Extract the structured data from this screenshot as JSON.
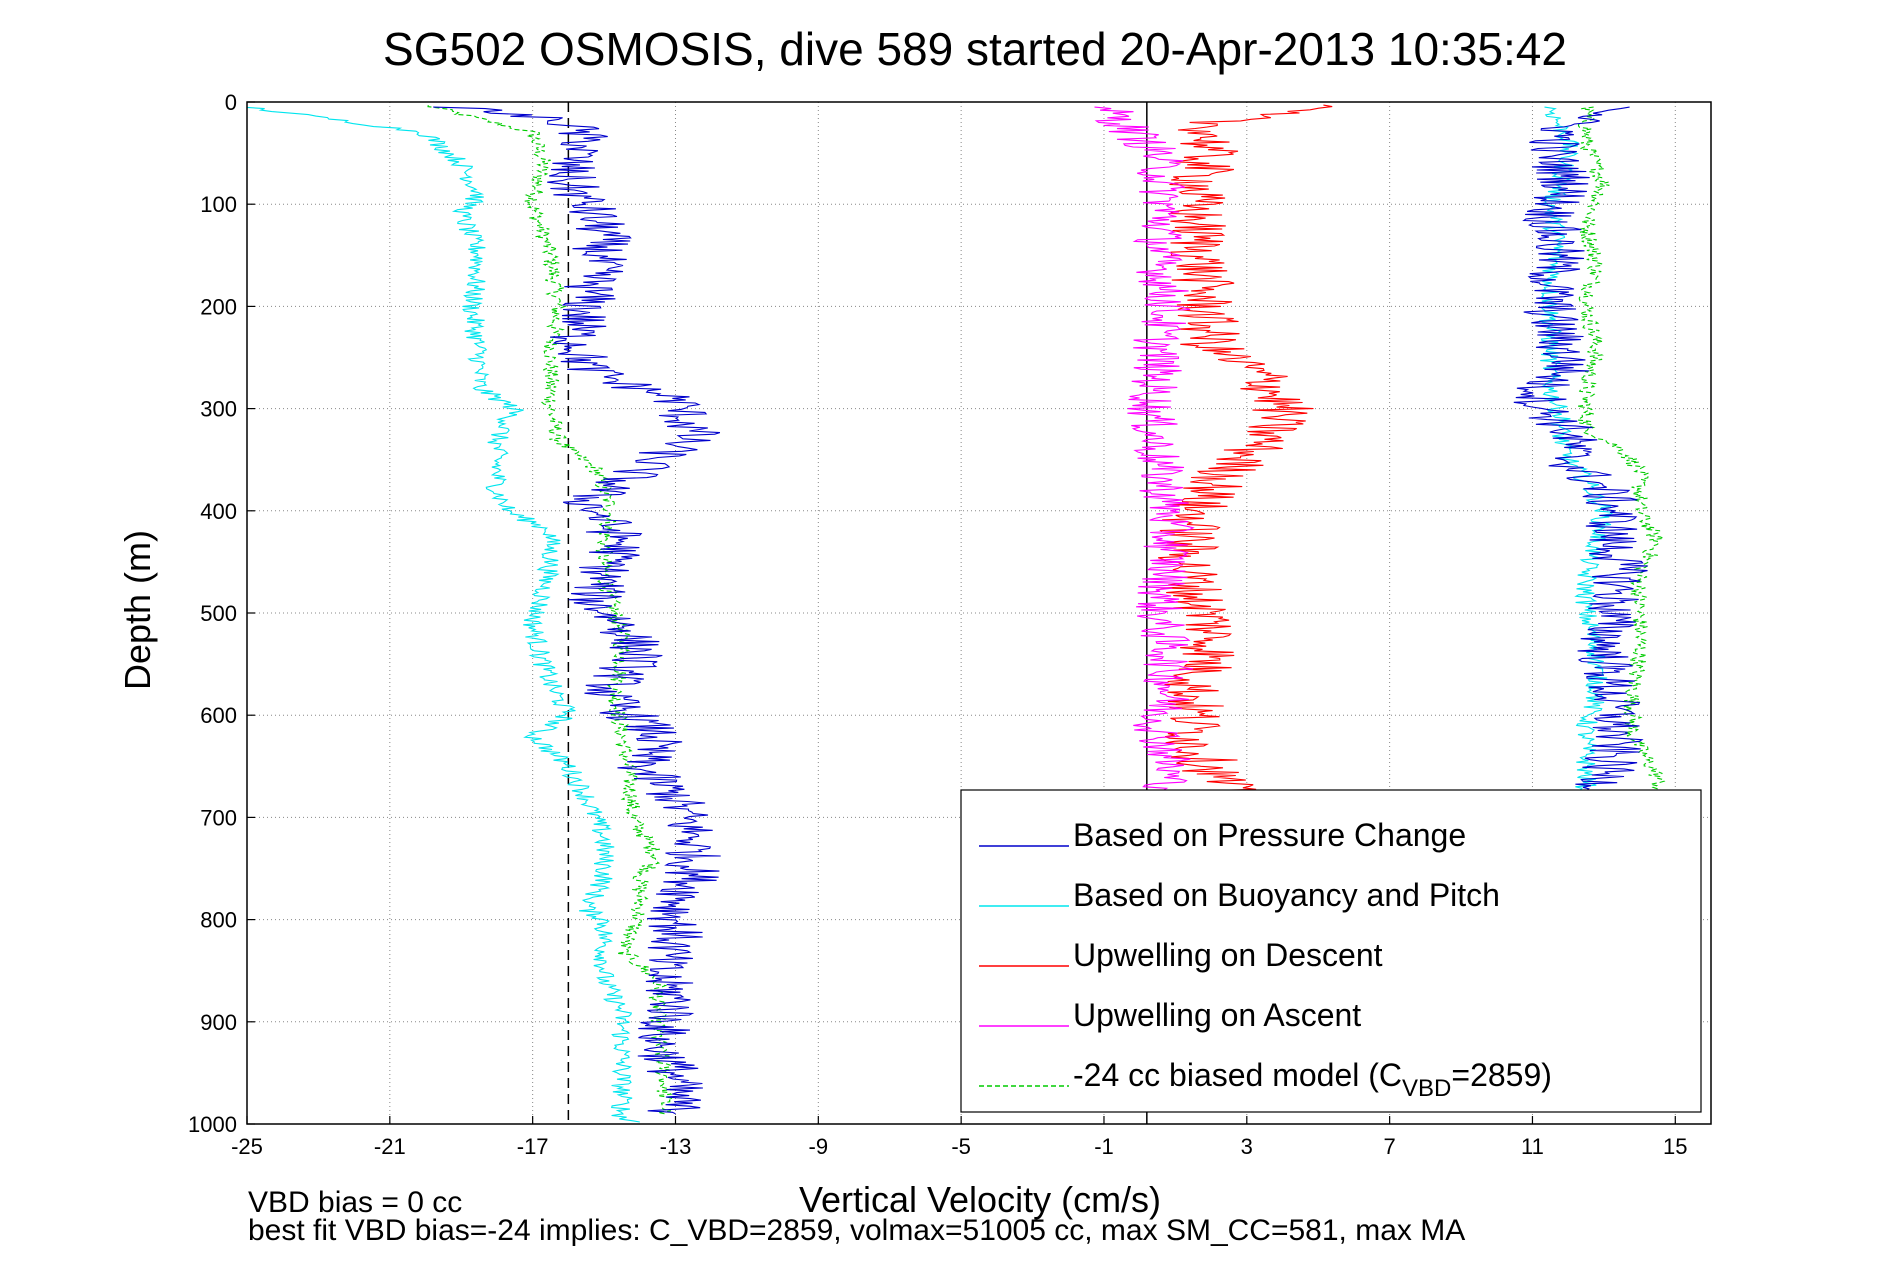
{
  "chart_data": {
    "type": "line",
    "title": "SG502 OSMOSIS, dive 589 started 20-Apr-2013 10:35:42",
    "xlabel": "Vertical Velocity (cm/s)",
    "ylabel": "Depth (m)",
    "xlim": [
      -25,
      16
    ],
    "ylim": [
      1000,
      0
    ],
    "y_reversed": true,
    "grid": true,
    "legend_position": "lower-right",
    "x_ticks": [
      -25,
      -21,
      -17,
      -13,
      -9,
      -5,
      -1,
      3,
      7,
      11,
      15
    ],
    "y_ticks": [
      0,
      100,
      200,
      300,
      400,
      500,
      600,
      700,
      800,
      900,
      1000
    ],
    "reference_lines": [
      {
        "orientation": "vertical",
        "x": -16,
        "style": "dashed",
        "color": "#000000"
      },
      {
        "orientation": "vertical",
        "x": 0.2,
        "style": "solid",
        "color": "#000000"
      }
    ],
    "series": [
      {
        "name": "Based on Pressure Change",
        "color": "#0000cc",
        "style": "solid",
        "x": [
          -19,
          -16,
          -15.5,
          -16,
          -16,
          -15.5,
          -15,
          -15.2,
          -15.5,
          -15.8,
          -15.5,
          -14.5,
          -13,
          -12.5,
          -14,
          -15.5,
          -15,
          -14.5,
          -15,
          -15.3,
          -14.5,
          -14,
          -14.5,
          -15,
          -13.5,
          -14,
          -13,
          -12.5,
          -12.5,
          -13,
          -13,
          -13.5,
          -13,
          -13.5,
          -13,
          -13
        ],
        "y": [
          5,
          20,
          40,
          60,
          80,
          100,
          130,
          160,
          200,
          230,
          260,
          275,
          290,
          325,
          360,
          390,
          410,
          430,
          460,
          490,
          510,
          540,
          560,
          580,
          620,
          650,
          680,
          720,
          760,
          790,
          820,
          850,
          880,
          920,
          950,
          990
        ],
        "x_ascent": [
          14,
          12,
          11.5,
          12,
          11.5,
          11.7,
          11.5,
          11.5,
          11.8,
          12,
          11.2,
          11.3,
          12,
          12.1,
          12,
          13,
          13.3,
          13.2,
          13.5,
          13.2,
          13,
          13.2,
          13.3,
          13.3,
          13,
          13
        ],
        "y_ascent": [
          5,
          20,
          50,
          80,
          110,
          150,
          180,
          210,
          240,
          260,
          280,
          300,
          320,
          335,
          350,
          380,
          400,
          430,
          460,
          500,
          540,
          580,
          600,
          630,
          660,
          690
        ]
      },
      {
        "name": "Based on Buoyancy and Pitch",
        "color": "#00e5ee",
        "style": "solid",
        "x": [
          -25,
          -20,
          -19,
          -18.5,
          -19,
          -18.5,
          -18.7,
          -18.5,
          -18.5,
          -17.5,
          -18,
          -18,
          -17.7,
          -16.5,
          -16.5,
          -16.7,
          -17,
          -16.8,
          -16.5,
          -16,
          -17,
          -16,
          -15.5,
          -15,
          -15,
          -15.5,
          -15,
          -15,
          -15,
          -14.5,
          -14.5,
          -14.5,
          -14.5,
          -14.5,
          -14.5,
          -14
        ],
        "y": [
          5,
          30,
          60,
          90,
          110,
          150,
          200,
          250,
          280,
          300,
          330,
          380,
          400,
          420,
          450,
          480,
          510,
          540,
          570,
          600,
          620,
          650,
          680,
          720,
          760,
          790,
          800,
          830,
          860,
          890,
          920,
          950,
          970,
          990,
          995,
          998
        ],
        "x_ascent": [
          11.5,
          12,
          11.8,
          11.5,
          11.7,
          11.5,
          11.5,
          11.5,
          11.5,
          11.8,
          11.8,
          12,
          12.5,
          13,
          12.8,
          12.5,
          12.5,
          12.8,
          12.8,
          12.5,
          12.5,
          12.5,
          12.5
        ],
        "y_ascent": [
          5,
          40,
          80,
          100,
          140,
          180,
          220,
          250,
          280,
          310,
          330,
          350,
          370,
          400,
          430,
          460,
          500,
          540,
          580,
          610,
          640,
          670,
          690
        ]
      },
      {
        "name": "Upwelling on Descent",
        "color": "#ff0000",
        "style": "solid",
        "x": [
          5,
          2,
          1.8,
          1.5,
          1.7,
          1.8,
          2,
          3.5,
          4,
          3.5,
          2.5,
          1.5,
          1.3,
          1.5,
          2,
          2,
          1.5,
          1.5,
          1.5,
          2,
          2.5
        ],
        "y": [
          3,
          20,
          60,
          100,
          150,
          200,
          240,
          270,
          300,
          330,
          360,
          400,
          440,
          480,
          510,
          540,
          570,
          600,
          630,
          650,
          680
        ]
      },
      {
        "name": "Upwelling on Ascent",
        "color": "#ff00ff",
        "style": "solid",
        "x": [
          -1,
          0.5,
          0.7,
          0.5,
          0.8,
          0.5,
          0.5,
          0.3,
          0.5,
          0.8,
          0.8,
          0.5,
          0.8,
          0.8,
          0.5,
          0.8,
          0.8,
          0.8
        ],
        "y": [
          5,
          50,
          100,
          150,
          200,
          230,
          260,
          300,
          350,
          400,
          450,
          500,
          540,
          580,
          610,
          640,
          670,
          690
        ]
      },
      {
        "name": "-24 cc biased model (C_VBD=2859)",
        "color": "#00cc00",
        "style": "dashed",
        "x": [
          -20,
          -17,
          -16.7,
          -17,
          -16.5,
          -16.3,
          -16.5,
          -16.5,
          -16.3,
          -16,
          -15.2,
          -14.8,
          -15,
          -15,
          -14.8,
          -14.5,
          -14.5,
          -14.7,
          -14.5,
          -14.3,
          -14.2,
          -13.5,
          -14,
          -14,
          -14.2,
          -14.5,
          -13.5,
          -13.5,
          -13.5,
          -13.3,
          -13.3
        ],
        "y": [
          3,
          30,
          60,
          100,
          150,
          200,
          250,
          300,
          330,
          340,
          360,
          400,
          430,
          460,
          490,
          520,
          550,
          580,
          620,
          660,
          700,
          740,
          760,
          790,
          810,
          830,
          860,
          890,
          920,
          950,
          990
        ],
        "x_ascent": [
          12.5,
          12.5,
          13,
          12.5,
          12.8,
          12.5,
          12.8,
          12.5,
          12.5,
          13.5,
          14,
          14,
          14,
          14.5,
          14,
          14,
          14,
          14,
          13.8,
          13.8,
          14.5,
          14.8,
          14.8,
          14.8
        ],
        "y_ascent": [
          5,
          40,
          80,
          120,
          160,
          200,
          240,
          280,
          320,
          340,
          360,
          380,
          400,
          430,
          460,
          480,
          500,
          540,
          580,
          620,
          660,
          780,
          820,
          850
        ]
      }
    ],
    "legend": [
      {
        "label": "Based on Pressure Change",
        "color": "#0000cc",
        "style": "solid"
      },
      {
        "label": "Based on Buoyancy and Pitch",
        "color": "#00e5ee",
        "style": "solid"
      },
      {
        "label": "Upwelling on Descent",
        "color": "#ff0000",
        "style": "solid"
      },
      {
        "label": "Upwelling on Ascent",
        "color": "#ff00ff",
        "style": "solid"
      },
      {
        "label_prefix": "-24 cc biased model (C",
        "label_subscript": "VBD",
        "label_suffix": "=2859)",
        "color": "#00cc00",
        "style": "dashed"
      }
    ],
    "annotations": [
      "VBD bias = 0 cc",
      "best fit VBD bias=-24 implies: C_VBD=2859, volmax=51005 cc, max SM_CC=581, max MA"
    ]
  }
}
